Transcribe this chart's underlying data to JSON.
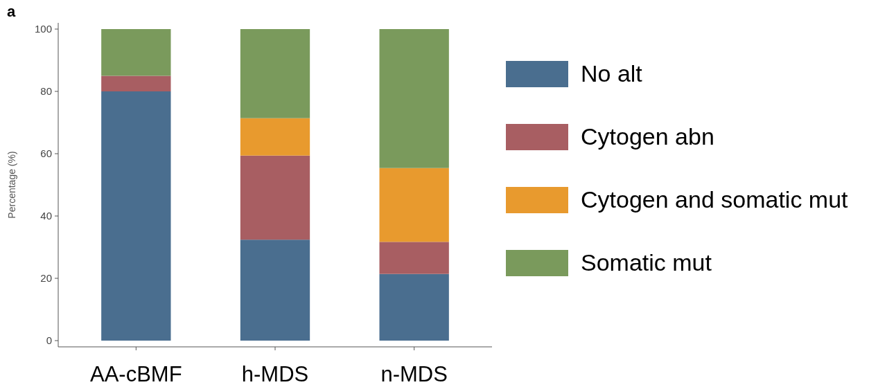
{
  "chart_data": {
    "type": "bar",
    "stacked": true,
    "ylabel": "Percentage (%)",
    "annotations": [
      "a"
    ],
    "categories": [
      "AA-cBMF",
      "h-MDS",
      "n-MDS"
    ],
    "series": [
      {
        "name": "No alt",
        "color": "#4a6e8f",
        "values": [
          80,
          32.4,
          21.4
        ]
      },
      {
        "name": "Cytogen abn",
        "color": "#a85e62",
        "values": [
          5,
          27,
          10.3
        ]
      },
      {
        "name": "Cytogen and somatic mut",
        "color": "#e89a2e",
        "values": [
          0,
          12,
          23.7
        ]
      },
      {
        "name": "Somatic mut",
        "color": "#7a9a5c",
        "values": [
          15,
          28.6,
          44.6
        ]
      }
    ],
    "ylim": [
      -2,
      102
    ],
    "yticks": [
      0,
      20,
      40,
      60,
      80,
      100
    ],
    "grid": false,
    "legend": "right"
  }
}
